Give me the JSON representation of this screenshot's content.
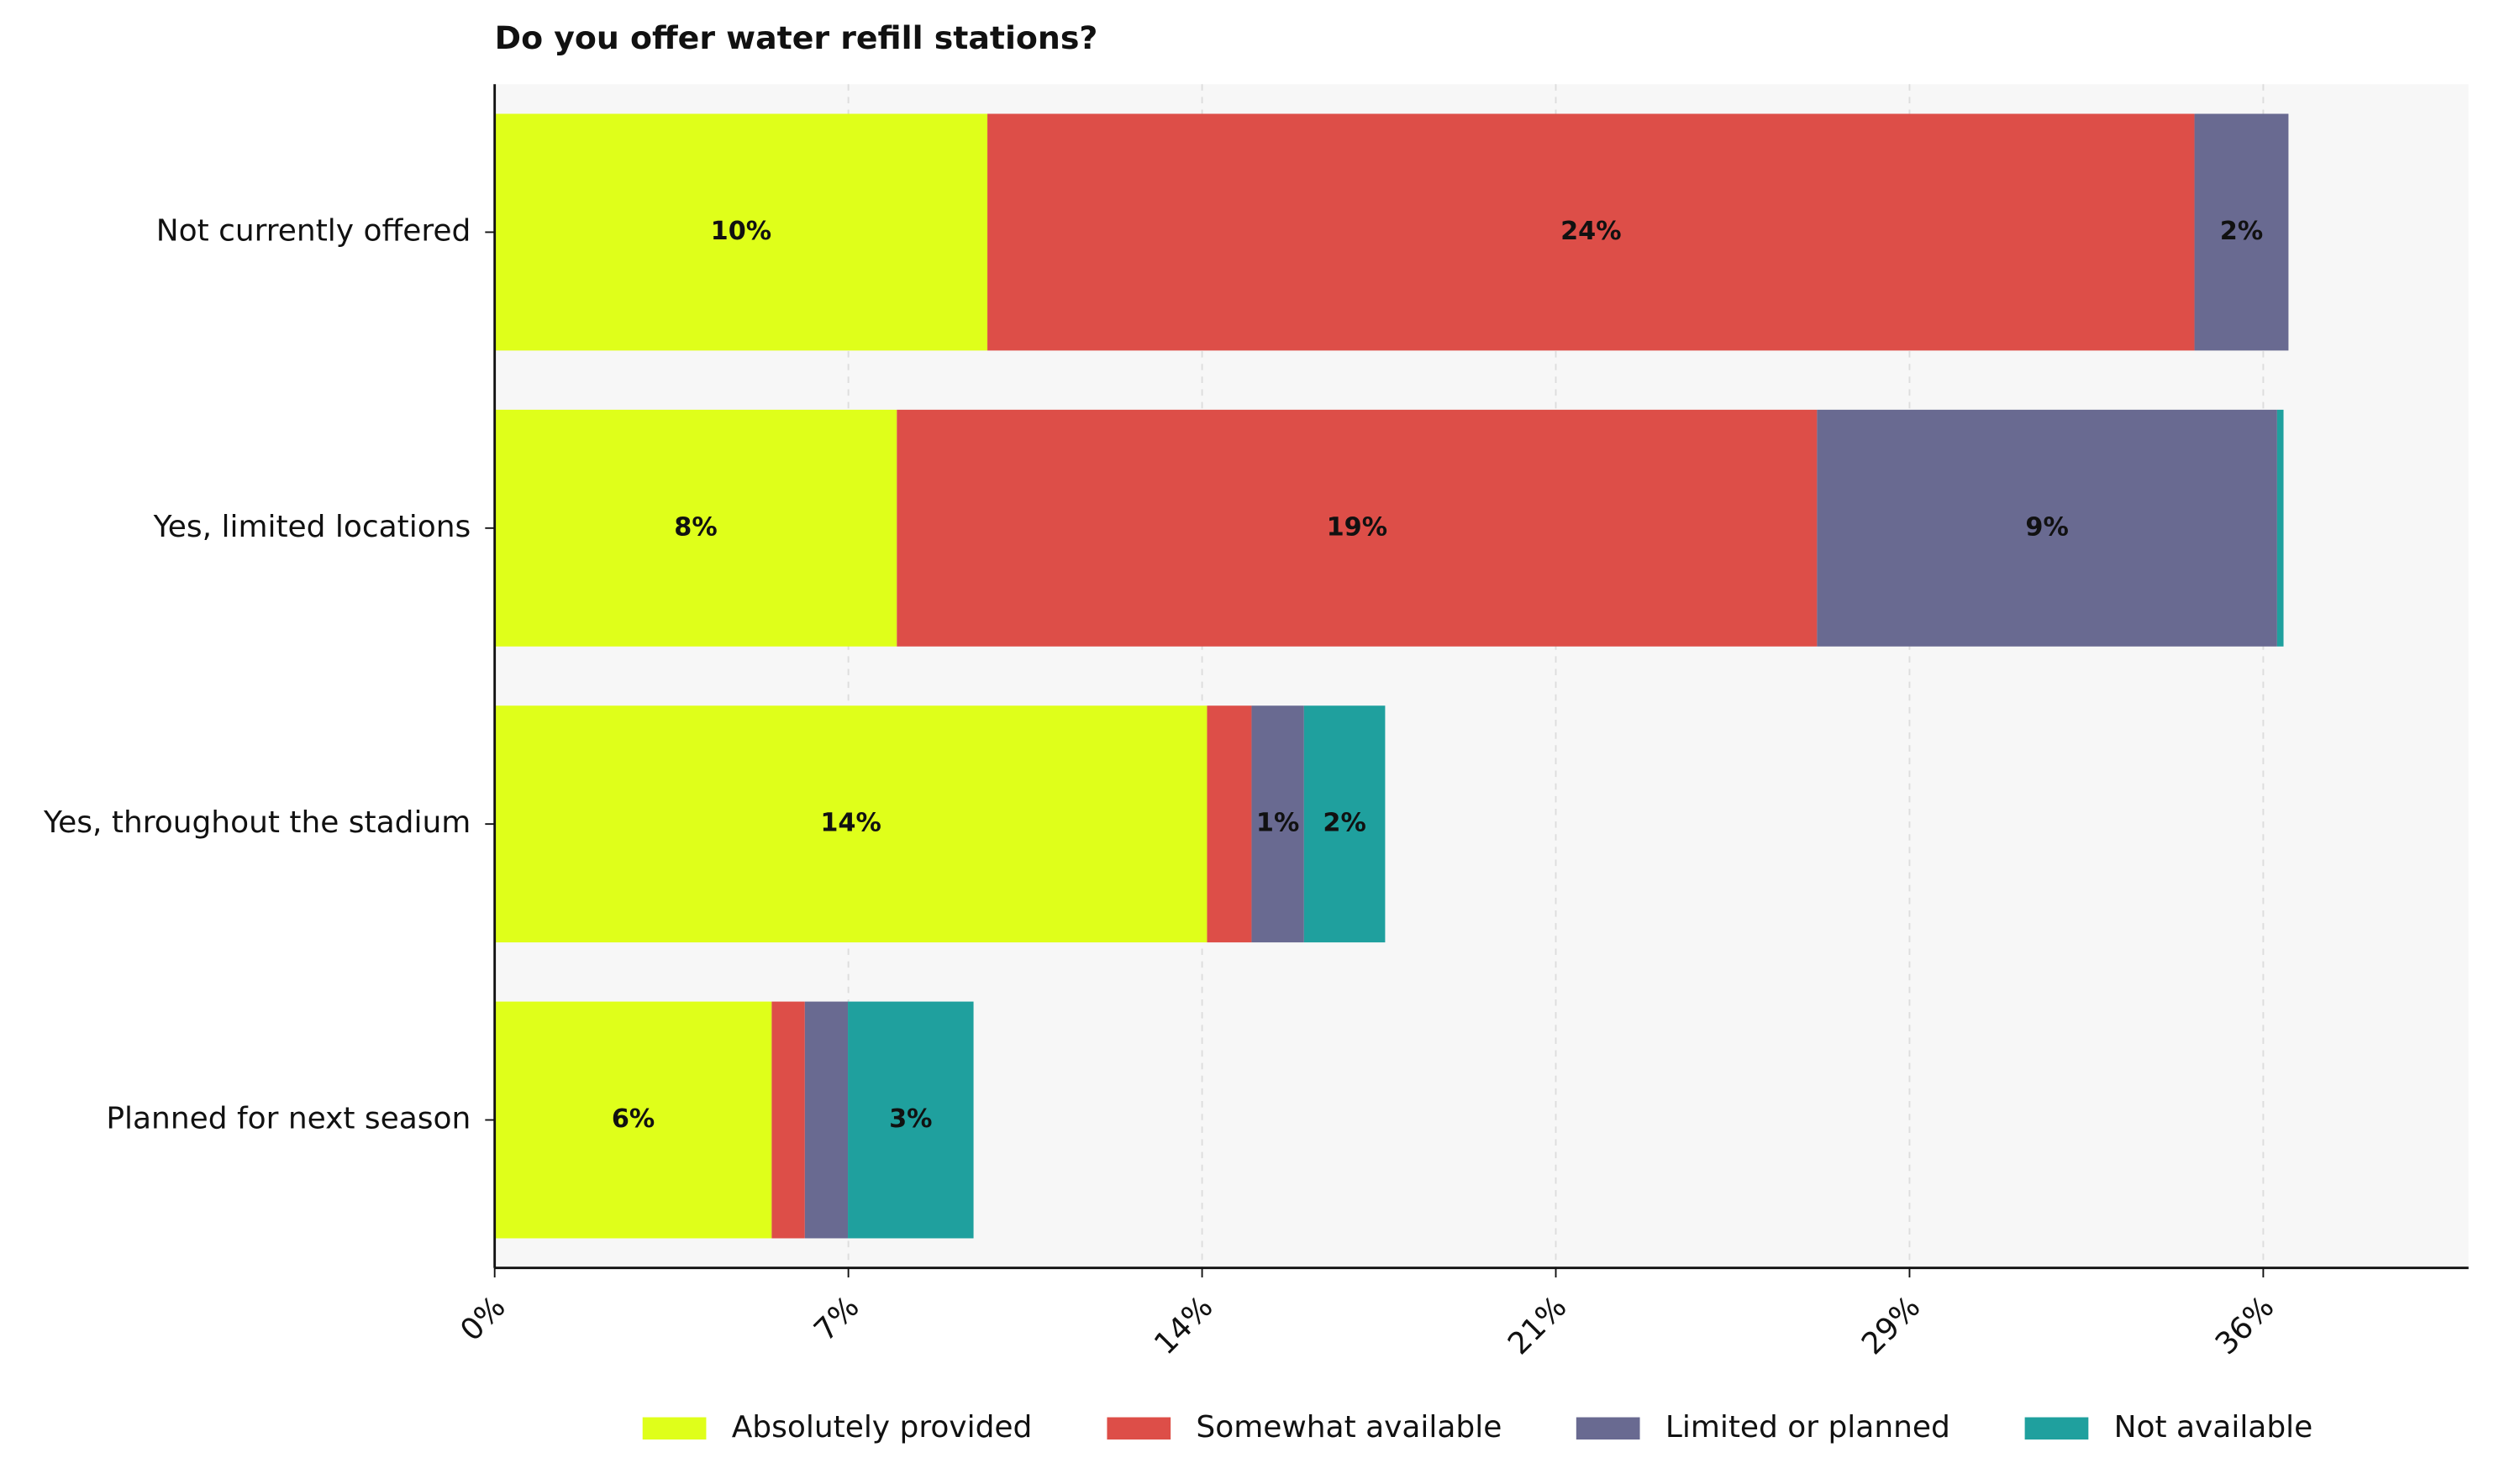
{
  "chart_data": {
    "type": "bar",
    "orientation": "horizontal",
    "stacked": true,
    "title": "Do you offer water refill stations?",
    "categories": [
      "Not currently offered",
      "Yes, limited locations",
      "Yes, throughout the stadium",
      "Planned for next season"
    ],
    "series": [
      {
        "name": "Absolutely provided",
        "color": "#dfff1a",
        "values": [
          9.96,
          8.13,
          14.4,
          5.6
        ],
        "value_labels": [
          "10%",
          "8%",
          "14%",
          "6%"
        ]
      },
      {
        "name": "Somewhat available",
        "color": "#dd4e48",
        "values": [
          24.4,
          18.6,
          0.9,
          0.67
        ],
        "value_labels": [
          "24%",
          "19%",
          null,
          null
        ]
      },
      {
        "name": "Limited or planned",
        "color": "#696a91",
        "values": [
          1.9,
          9.3,
          1.06,
          0.87
        ],
        "value_labels": [
          "2%",
          "9%",
          "1%",
          null
        ]
      },
      {
        "name": "Not available",
        "color": "#1fa09e",
        "values": [
          0,
          0.13,
          1.64,
          2.54
        ],
        "value_labels": [
          null,
          null,
          "2%",
          "3%"
        ]
      }
    ],
    "xlim": [
      0,
      39.9
    ],
    "xticks": [
      {
        "value": 0,
        "label": "0%"
      },
      {
        "value": 7.15,
        "label": "7%"
      },
      {
        "value": 14.3,
        "label": "14%"
      },
      {
        "value": 21.45,
        "label": "21%"
      },
      {
        "value": 28.6,
        "label": "29%"
      },
      {
        "value": 35.75,
        "label": "36%"
      }
    ],
    "grid": true,
    "legend": "bottom"
  }
}
